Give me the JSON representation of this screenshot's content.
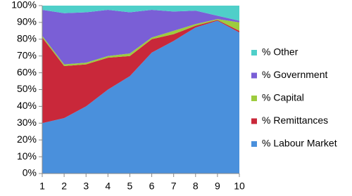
{
  "chart_data": {
    "type": "stacked-area",
    "x": [
      1,
      2,
      3,
      4,
      5,
      6,
      7,
      8,
      9,
      10
    ],
    "xlim": [
      1,
      10
    ],
    "xticks": [
      1,
      2,
      3,
      4,
      5,
      6,
      7,
      8,
      9,
      10
    ],
    "ylim": [
      0,
      100
    ],
    "yticks": [
      {
        "value": 0,
        "label": "0%"
      },
      {
        "value": 10,
        "label": "10%"
      },
      {
        "value": 20,
        "label": "20%"
      },
      {
        "value": 30,
        "label": "30%"
      },
      {
        "value": 40,
        "label": "40%"
      },
      {
        "value": 50,
        "label": "50%"
      },
      {
        "value": 60,
        "label": "60%"
      },
      {
        "value": 70,
        "label": "70%"
      },
      {
        "value": 80,
        "label": "80%"
      },
      {
        "value": 90,
        "label": "90%"
      },
      {
        "value": 100,
        "label": "100%"
      }
    ],
    "legend": "right",
    "series": [
      {
        "name": "% Labour Market",
        "color": "#4a90dc",
        "values": [
          30,
          33,
          40,
          50,
          58,
          72,
          79,
          87,
          91,
          84
        ]
      },
      {
        "name": "% Remittances",
        "color": "#c9283a",
        "values": [
          51,
          31,
          25,
          19,
          12,
          8,
          4,
          1,
          0.5,
          1
        ]
      },
      {
        "name": "% Capital",
        "color": "#9dcc3e",
        "values": [
          1,
          1,
          1,
          1,
          1.5,
          1,
          2,
          1,
          0.5,
          5
        ]
      },
      {
        "name": "% Government",
        "color": "#7a5fd6",
        "values": [
          15.5,
          30.5,
          30,
          27.5,
          24.5,
          16.5,
          11.5,
          8,
          2,
          1
        ]
      },
      {
        "name": "% Other",
        "color": "#4fcfc9",
        "values": [
          2.5,
          4.5,
          4,
          2.5,
          4,
          2.5,
          3.5,
          3,
          6,
          9
        ]
      }
    ]
  }
}
